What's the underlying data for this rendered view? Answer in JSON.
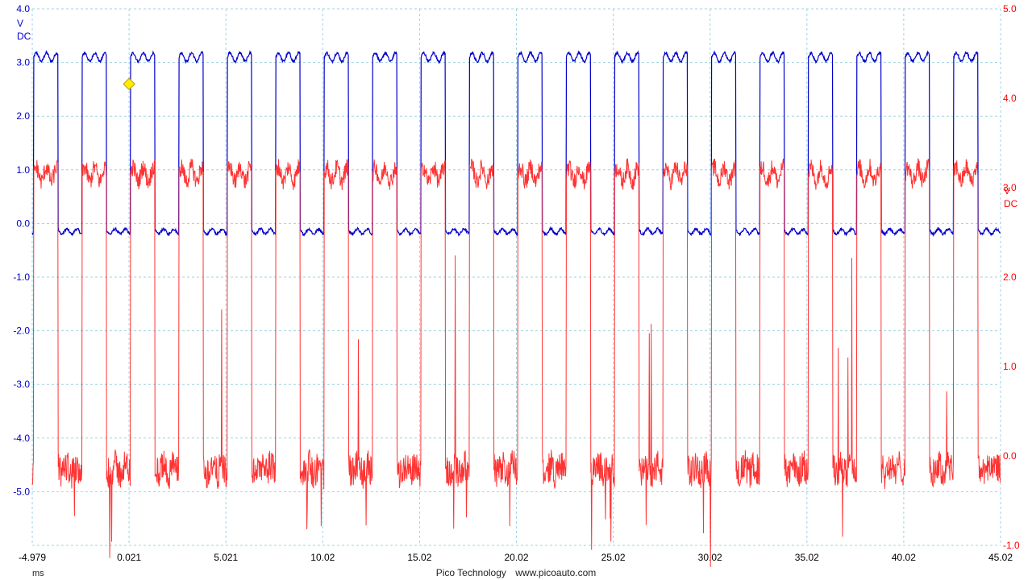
{
  "footer": {
    "brand": "Pico Technology",
    "site": "www.picoauto.com"
  },
  "x_unit": "ms",
  "chart_data": {
    "type": "line",
    "title": "",
    "grid": true,
    "x_ticks": [
      "-4.979",
      "0.021",
      "5.021",
      "10.02",
      "15.02",
      "20.02",
      "25.02",
      "30.02",
      "35.02",
      "40.02",
      "45.02"
    ],
    "xlim": [
      -4.979,
      45.02
    ],
    "xlabel": "ms",
    "axes": [
      {
        "side": "left",
        "unit_lines": [
          "V",
          "DC"
        ],
        "color": "#0000cc",
        "ylim": [
          -6.0,
          4.0
        ],
        "ticks": [
          "4.0",
          "3.0",
          "2.0",
          "1.0",
          "0.0",
          "-1.0",
          "-2.0",
          "-3.0",
          "-4.0",
          "-5.0"
        ]
      },
      {
        "side": "right",
        "unit_lines": [
          "V",
          "DC"
        ],
        "color": "#ff0000",
        "ylim": [
          -1.0,
          5.0
        ],
        "ticks": [
          "5.0",
          "4.0",
          "3.0",
          "2.0",
          "1.0",
          "0.0",
          "-1.0"
        ]
      }
    ],
    "series": [
      {
        "color": "#0000cc",
        "axis": "left",
        "shape": "square_wave",
        "high_v": 3.1,
        "low_v": -0.15,
        "period_ms": 2.5,
        "first_rise_ms": -4.9,
        "duty": 0.5
      },
      {
        "color": "#ff3333",
        "axis": "right",
        "shape": "noisy_square_wave",
        "high_v": 3.15,
        "low_v": -0.15,
        "period_ms": 2.5,
        "first_rise_ms": -4.9,
        "duty": 0.5
      }
    ],
    "marker": {
      "shape": "diamond",
      "color": "#ffee00",
      "x_ms": 0.021,
      "y_v": 2.6,
      "axis": "left"
    }
  }
}
